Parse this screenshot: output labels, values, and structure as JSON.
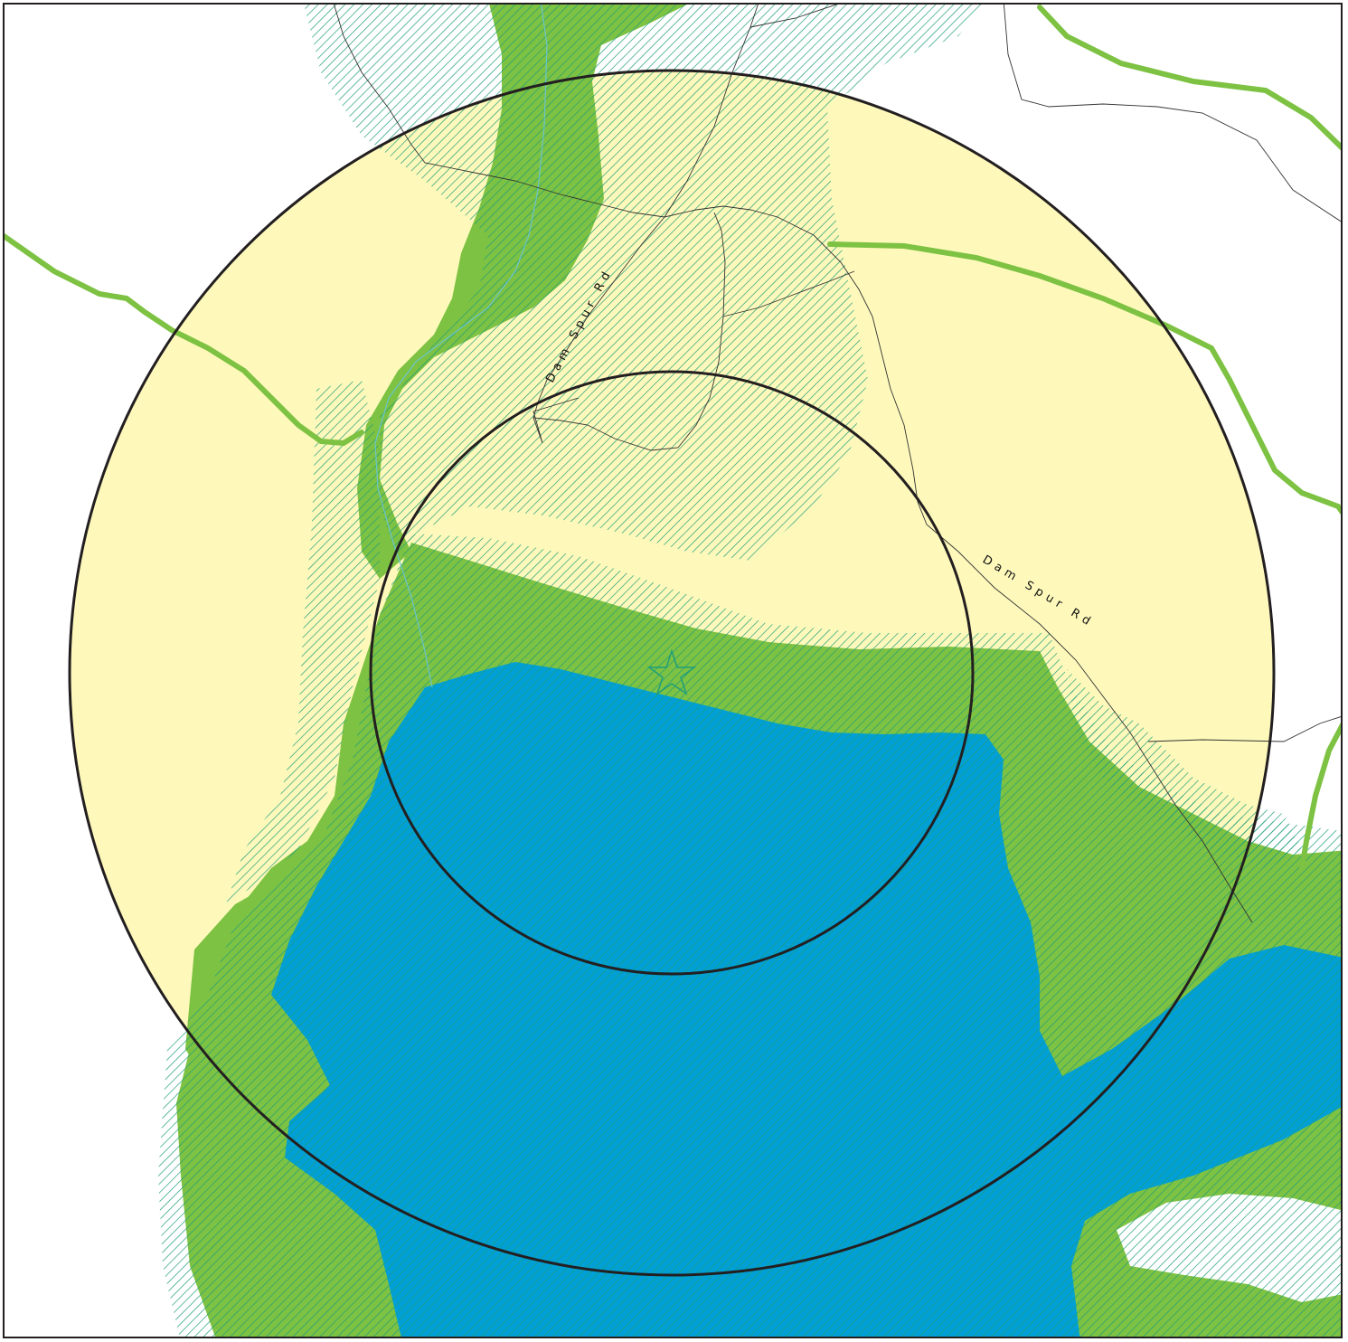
{
  "map": {
    "colors": {
      "buffer_fill": "#fef9bb",
      "vegetation_fill": "#7dc242",
      "water_fill": "#00a0d6",
      "hatch": "#1f9e7a",
      "stream_line": "#6ac4ce",
      "ring_stroke": "#231f20",
      "road_stroke": "#333333",
      "frame_stroke": "#231f20"
    },
    "legend": [],
    "road_labels": [
      {
        "text": "Dam Spur Rd"
      },
      {
        "text": "Dam Spur Rd"
      }
    ],
    "features": {
      "site_marker_icon": "star-icon",
      "inner_ring": "inner-buffer-ring",
      "outer_ring": "outer-buffer-ring",
      "reservoir": "water-body"
    }
  }
}
